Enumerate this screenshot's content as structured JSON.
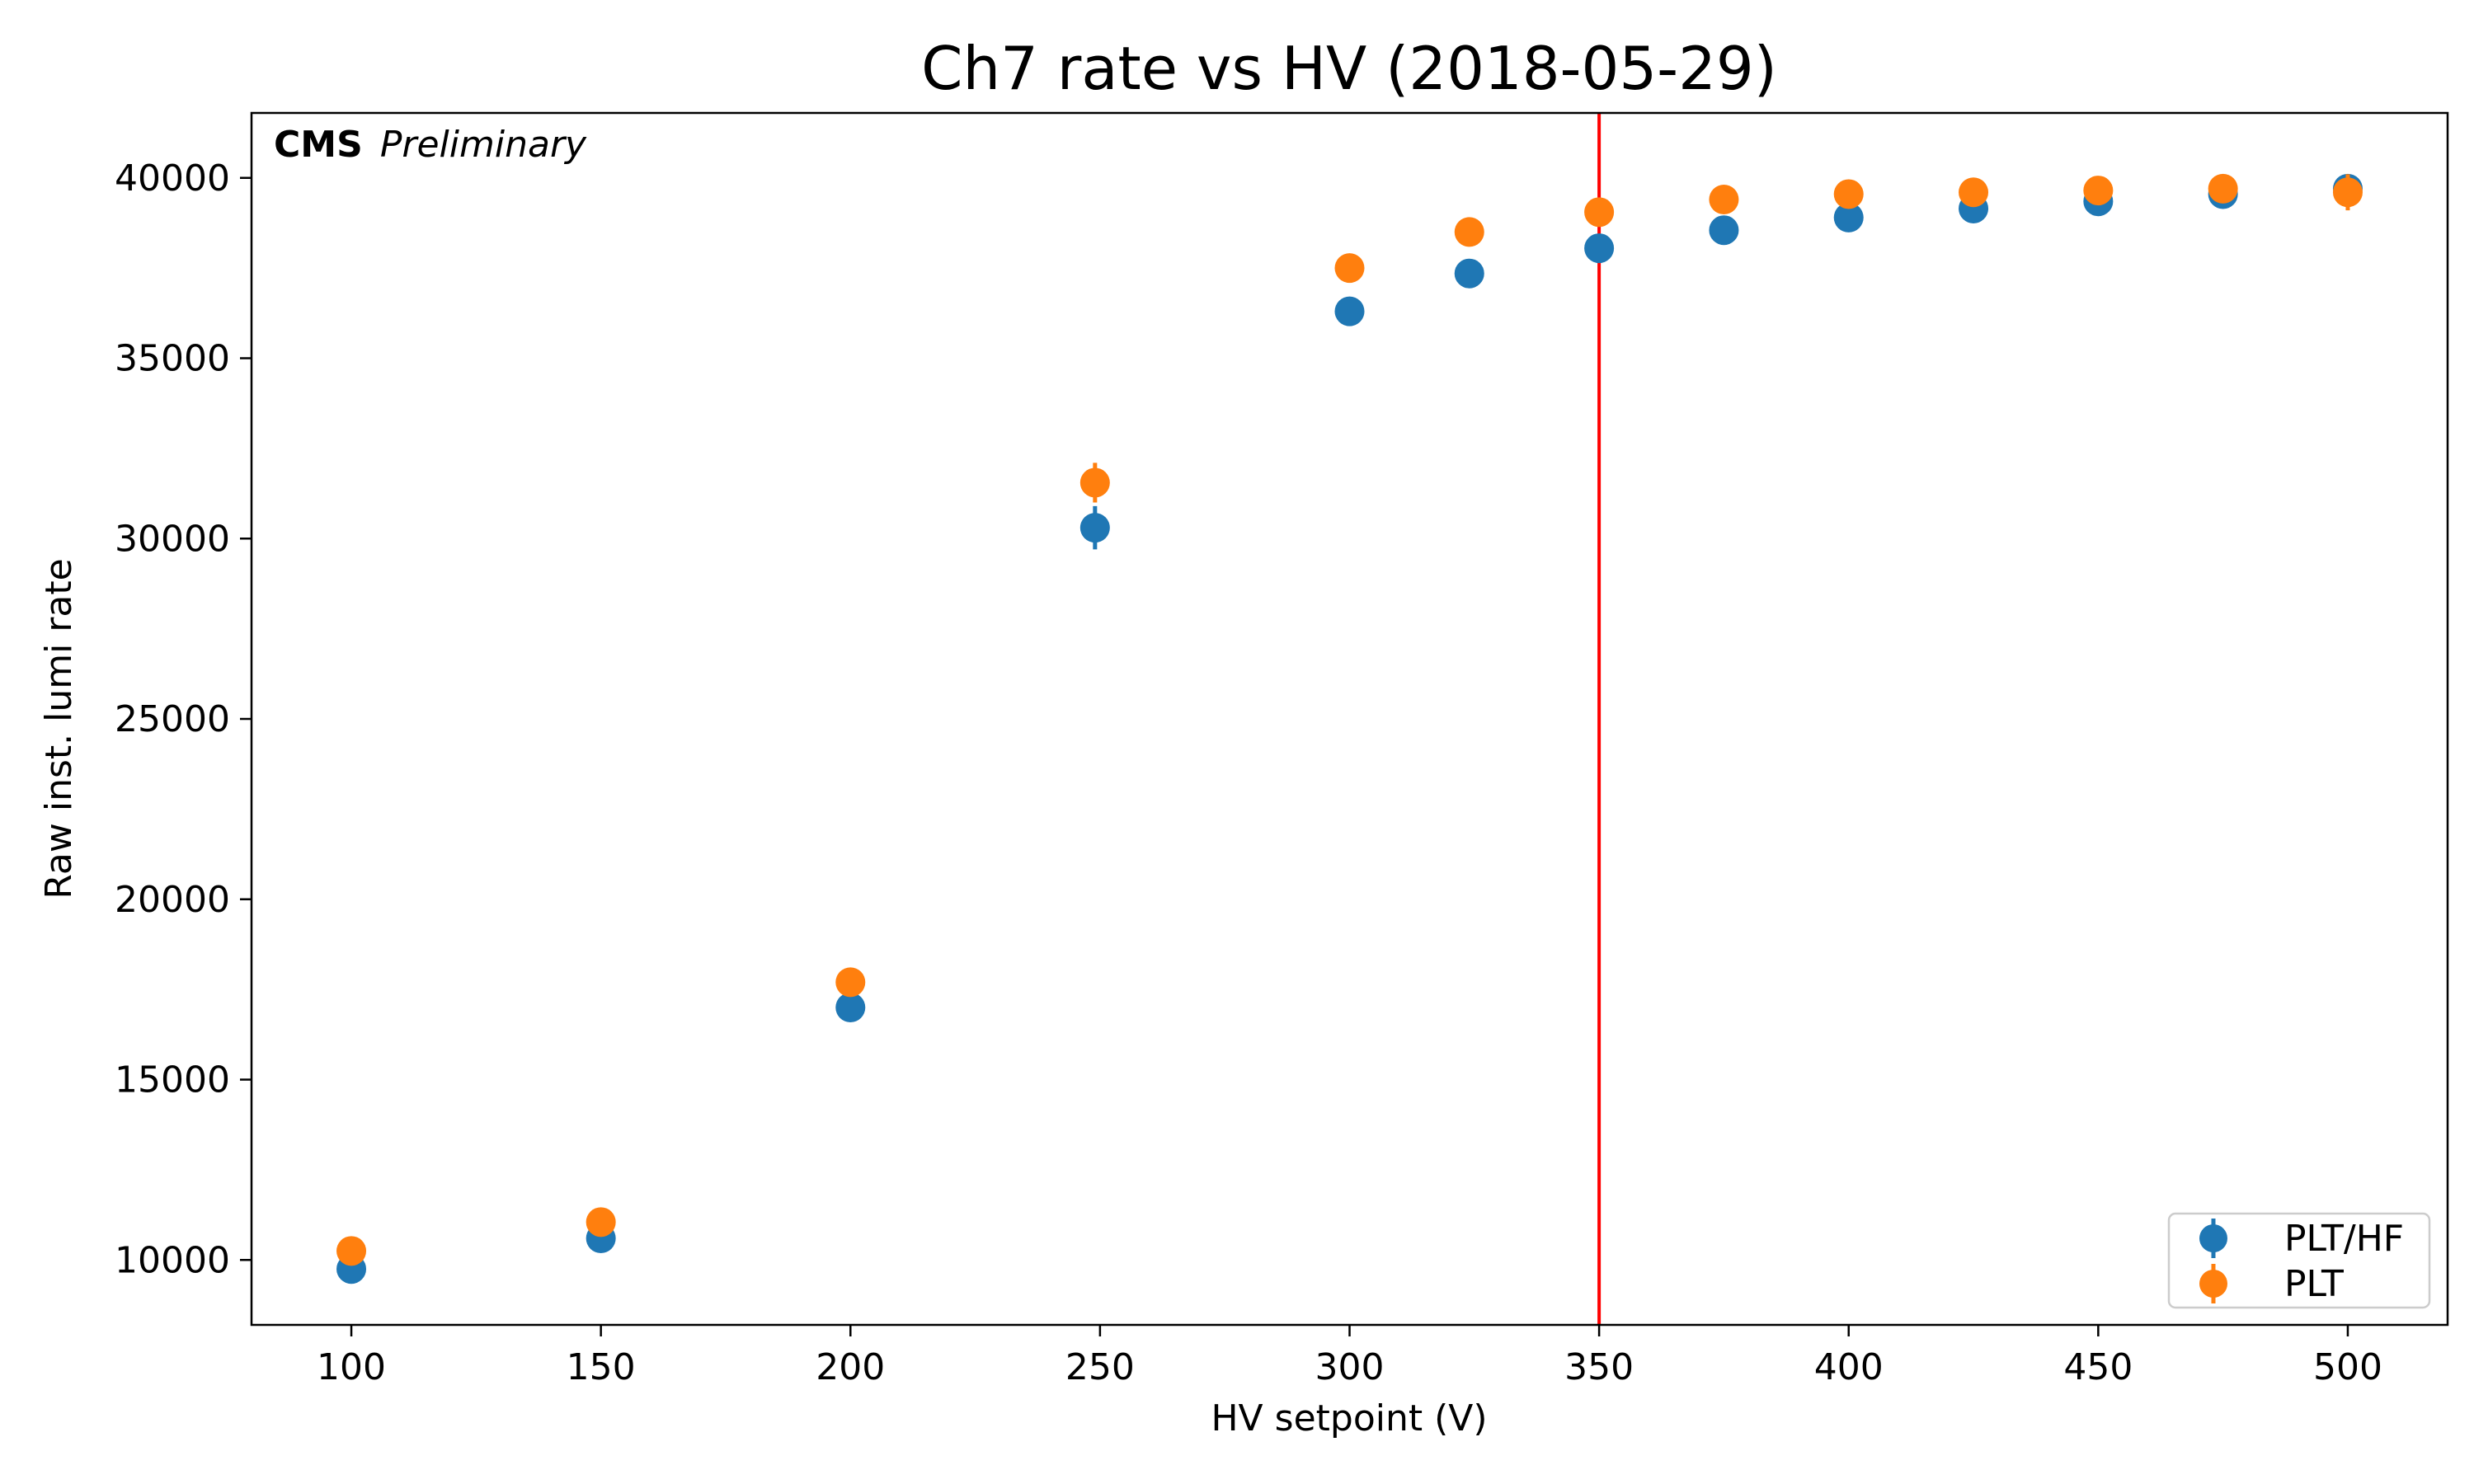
{
  "chart_data": {
    "type": "scatter",
    "title": "Ch7 rate vs HV (2018-05-29)",
    "xlabel": "HV setpoint (V)",
    "ylabel": "Raw inst. lumi rate",
    "xlim": [
      80,
      520
    ],
    "ylim": [
      8200,
      41800
    ],
    "xticks": [
      100,
      150,
      200,
      250,
      300,
      350,
      400,
      450,
      500
    ],
    "yticks": [
      10000,
      15000,
      20000,
      25000,
      30000,
      35000,
      40000
    ],
    "grid": false,
    "legend_position": "lower-right",
    "annotation": {
      "bold": "CMS",
      "italic": "Preliminary"
    },
    "reference_line": {
      "x": 350,
      "color": "#ff0000"
    },
    "series": [
      {
        "name": "PLT/HF",
        "color": "#1f77b4",
        "points": [
          {
            "x": 100,
            "y": 9750,
            "err": 150
          },
          {
            "x": 150,
            "y": 10600,
            "err": 150
          },
          {
            "x": 200,
            "y": 17000,
            "err": 150
          },
          {
            "x": 249,
            "y": 30300,
            "err": 600
          },
          {
            "x": 300,
            "y": 36300,
            "err": 150
          },
          {
            "x": 324,
            "y": 37350,
            "err": 150
          },
          {
            "x": 350,
            "y": 38050,
            "err": 150
          },
          {
            "x": 375,
            "y": 38550,
            "err": 150
          },
          {
            "x": 400,
            "y": 38900,
            "err": 150
          },
          {
            "x": 425,
            "y": 39150,
            "err": 150
          },
          {
            "x": 450,
            "y": 39350,
            "err": 150
          },
          {
            "x": 475,
            "y": 39550,
            "err": 150
          },
          {
            "x": 500,
            "y": 39700,
            "err": 250
          }
        ]
      },
      {
        "name": "PLT",
        "color": "#ff7f0e",
        "points": [
          {
            "x": 100,
            "y": 10250,
            "err": 150
          },
          {
            "x": 150,
            "y": 11050,
            "err": 150
          },
          {
            "x": 200,
            "y": 17700,
            "err": 150
          },
          {
            "x": 249,
            "y": 31550,
            "err": 550
          },
          {
            "x": 300,
            "y": 37500,
            "err": 150
          },
          {
            "x": 324,
            "y": 38500,
            "err": 150
          },
          {
            "x": 350,
            "y": 39050,
            "err": 150
          },
          {
            "x": 375,
            "y": 39400,
            "err": 150
          },
          {
            "x": 400,
            "y": 39550,
            "err": 150
          },
          {
            "x": 425,
            "y": 39600,
            "err": 150
          },
          {
            "x": 450,
            "y": 39650,
            "err": 150
          },
          {
            "x": 475,
            "y": 39700,
            "err": 150
          },
          {
            "x": 500,
            "y": 39600,
            "err": 500
          }
        ]
      }
    ]
  }
}
